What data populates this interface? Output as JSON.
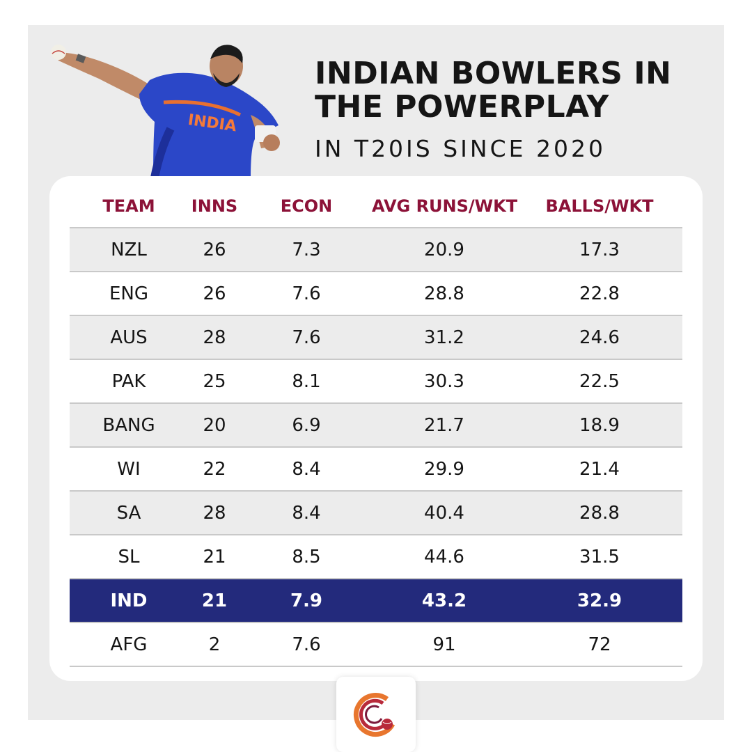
{
  "title_line1": "INDIAN BOWLERS IN",
  "title_line2": "THE POWERPLAY",
  "subtitle": "IN T20IS SINCE 2020",
  "jersey_text": "INDIA",
  "colors": {
    "header_text": "#8c1238",
    "highlight_row": "#232a7c",
    "stripe": "#ececec",
    "panel": "#ececec"
  },
  "chart_data": {
    "type": "table",
    "columns": [
      "TEAM",
      "INNS",
      "ECON",
      "AVG RUNS/WKT",
      "BALLS/WKT"
    ],
    "rows": [
      [
        "NZL",
        "26",
        "7.3",
        "20.9",
        "17.3"
      ],
      [
        "ENG",
        "26",
        "7.6",
        "28.8",
        "22.8"
      ],
      [
        "AUS",
        "28",
        "7.6",
        "31.2",
        "24.6"
      ],
      [
        "PAK",
        "25",
        "8.1",
        "30.3",
        "22.5"
      ],
      [
        "BANG",
        "20",
        "6.9",
        "21.7",
        "18.9"
      ],
      [
        "WI",
        "22",
        "8.4",
        "29.9",
        "21.4"
      ],
      [
        "SA",
        "28",
        "8.4",
        "40.4",
        "28.8"
      ],
      [
        "SL",
        "21",
        "8.5",
        "44.6",
        "31.5"
      ],
      [
        "IND",
        "21",
        "7.9",
        "43.2",
        "32.9"
      ],
      [
        "AFG",
        "2",
        "7.6",
        "91",
        "72"
      ]
    ],
    "highlight_row": "IND"
  },
  "icons": {
    "player": "bowler-image-icon",
    "brand": "brand-logo-icon"
  }
}
